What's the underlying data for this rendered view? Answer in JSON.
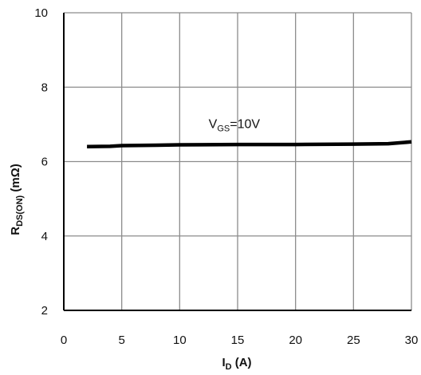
{
  "chart_data": {
    "type": "line",
    "title": "",
    "xlabel": {
      "main": "I",
      "sub": "D",
      "rest": " (A)"
    },
    "ylabel": {
      "main": "R",
      "sub": "DS(ON)",
      "rest": " (mΩ)"
    },
    "xlim": [
      0,
      30
    ],
    "ylim": [
      2,
      10
    ],
    "xticks": [
      0,
      5,
      10,
      15,
      20,
      25,
      30
    ],
    "yticks": [
      2,
      4,
      6,
      8,
      10
    ],
    "grid": true,
    "legend": "none",
    "series": [
      {
        "color": "#000000",
        "x": [
          2,
          4,
          5,
          8,
          10,
          15,
          20,
          25,
          28,
          30
        ],
        "y": [
          6.4,
          6.41,
          6.43,
          6.44,
          6.45,
          6.46,
          6.46,
          6.47,
          6.48,
          6.53
        ]
      }
    ],
    "annotations": [
      {
        "main": "V",
        "sub": "GS",
        "rest": "=10V",
        "x": 12.5,
        "y": 6.9
      }
    ]
  }
}
